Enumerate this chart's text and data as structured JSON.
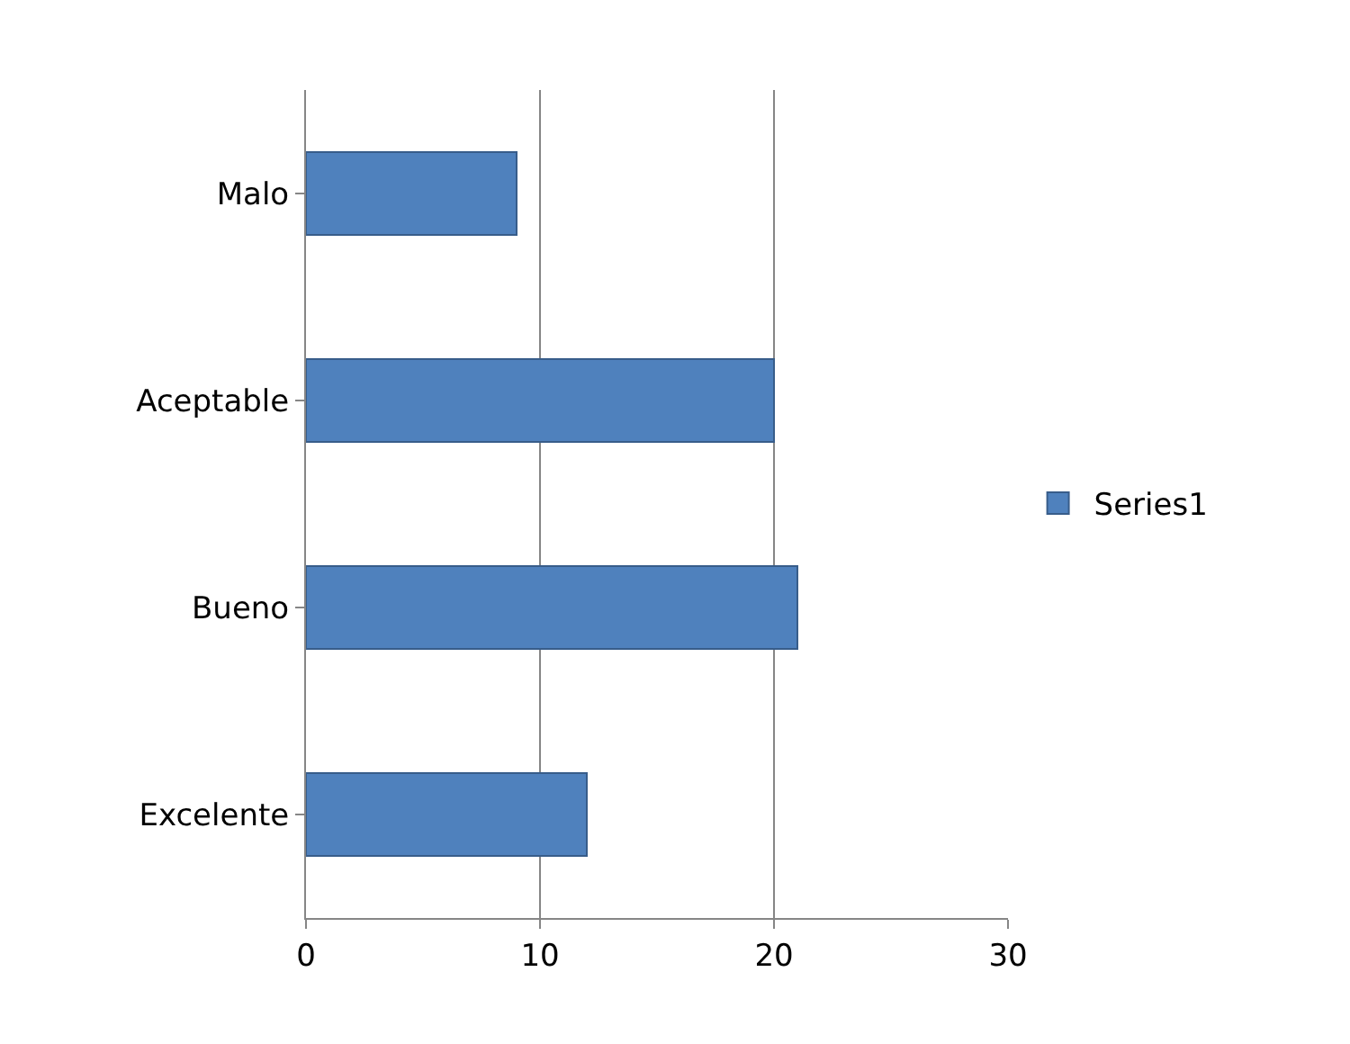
{
  "chart_data": {
    "type": "bar",
    "orientation": "horizontal",
    "categories": [
      "Malo",
      "Aceptable",
      "Bueno",
      "Excelente"
    ],
    "series": [
      {
        "name": "Series1",
        "color": "#4f81bd",
        "values": [
          9,
          20,
          21,
          12
        ]
      }
    ],
    "xlim": [
      0,
      30
    ],
    "xticks": [
      0,
      10,
      20,
      30
    ],
    "grid": "x",
    "legend": "right"
  }
}
